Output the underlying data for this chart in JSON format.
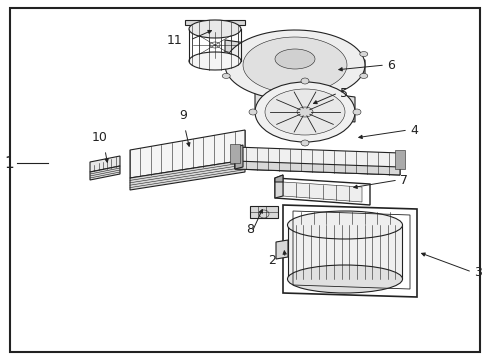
{
  "background_color": "#ffffff",
  "border_color": "#000000",
  "border_linewidth": 1.5,
  "fig_width": 4.9,
  "fig_height": 3.6,
  "dpi": 100,
  "part_color_light": "#f2f2f2",
  "part_color_mid": "#d8d8d8",
  "part_color_dark": "#aaaaaa",
  "line_color": "#222222",
  "lw_main": 0.8,
  "lw_thin": 0.4
}
